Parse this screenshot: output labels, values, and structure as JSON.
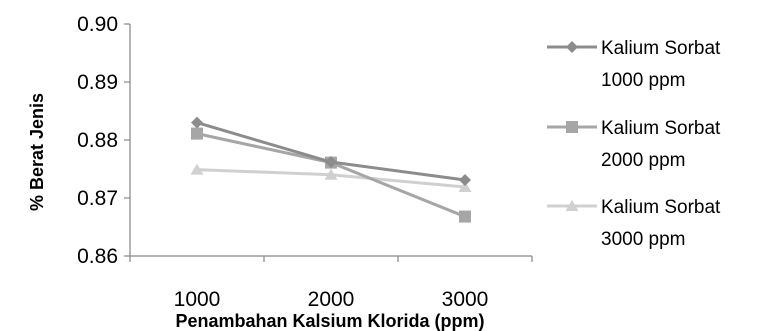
{
  "chart_data": {
    "type": "line",
    "title": "",
    "xlabel": "Penambahan Kalsium Klorida (ppm)",
    "ylabel": "% Berat Jenis",
    "categories": [
      "1000",
      "2000",
      "3000"
    ],
    "ylim": [
      0.86,
      0.9
    ],
    "yticks": [
      "0.86",
      "0.87",
      "0.88",
      "0.89",
      "0.90"
    ],
    "grid": false,
    "legend_position": "right",
    "series": [
      {
        "name_lines": [
          "Kalium Sorbat",
          "1000 ppm"
        ],
        "values": [
          0.883,
          0.8762,
          0.8731
        ],
        "color": "#8c8c8c",
        "marker": "diamond"
      },
      {
        "name_lines": [
          "Kalium Sorbat",
          "2000 ppm"
        ],
        "values": [
          0.8811,
          0.8761,
          0.8668
        ],
        "color": "#a6a6a6",
        "marker": "square"
      },
      {
        "name_lines": [
          "Kalium Sorbat",
          "3000 ppm"
        ],
        "values": [
          0.8749,
          0.874,
          0.8719
        ],
        "color": "#d0d0d0",
        "marker": "triangle"
      }
    ]
  }
}
